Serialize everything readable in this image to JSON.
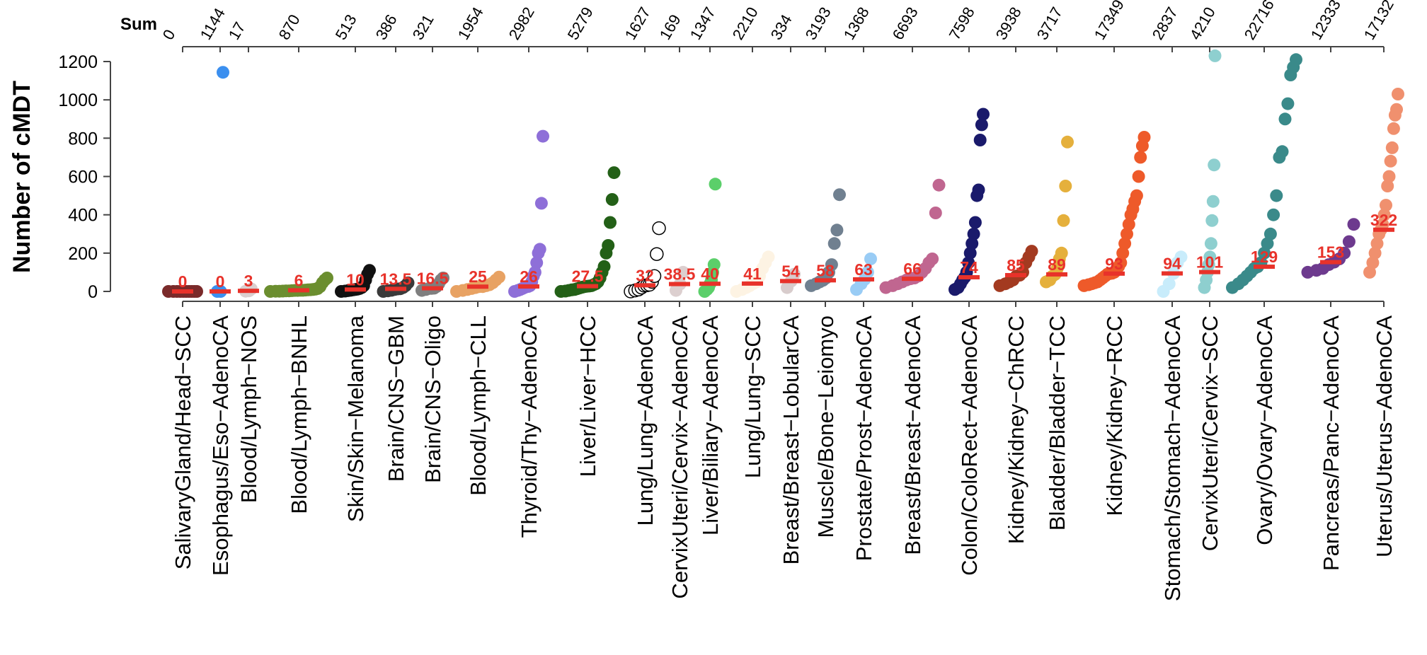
{
  "chart_data": {
    "type": "scatter",
    "title": "",
    "ylabel": "Number of cMDT",
    "xlabel": "",
    "ylim": [
      0,
      1200
    ],
    "yticks": [
      0,
      200,
      400,
      600,
      800,
      1000,
      1200
    ],
    "top_axis_label": "Sum",
    "grid": false,
    "median_color": "#e8322a",
    "groups": [
      {
        "name": "SalivaryGland/Head−SCC",
        "sum": "0",
        "median": "0",
        "color": "#7a2a2a",
        "values": [
          0,
          0,
          0,
          0,
          0,
          0,
          0,
          0,
          0,
          0
        ]
      },
      {
        "name": "Esophagus/Eso−AdenoCA",
        "sum": "1144",
        "median": "0",
        "color": "#3b8fef",
        "values": [
          0,
          0,
          1144
        ]
      },
      {
        "name": "Blood/Lymph−NOS",
        "sum": "17",
        "median": "3",
        "color": "#dacfcf",
        "values": [
          1,
          3,
          13
        ]
      },
      {
        "name": "Blood/Lymph−BNHL",
        "sum": "870",
        "median": "6",
        "color": "#6b8e2f",
        "values": [
          0,
          1,
          1,
          2,
          3,
          3,
          4,
          5,
          5,
          6,
          6,
          7,
          8,
          9,
          10,
          12,
          15,
          25,
          45,
          60,
          70
        ]
      },
      {
        "name": "Skin/Skin−Melanoma",
        "sum": "513",
        "median": "10",
        "color": "#111111",
        "values": [
          0,
          2,
          4,
          6,
          8,
          10,
          12,
          15,
          20,
          30,
          60,
          90,
          110
        ]
      },
      {
        "name": "Brain/CNS−GBM",
        "sum": "386",
        "median": "13.5",
        "color": "#3a3a3a",
        "values": [
          0,
          3,
          6,
          10,
          13,
          14,
          20,
          30,
          45
        ]
      },
      {
        "name": "Brain/CNS−Oligo",
        "sum": "321",
        "median": "16.5",
        "color": "#7f7f7f",
        "values": [
          5,
          10,
          15,
          16,
          17,
          25,
          40,
          60,
          70
        ]
      },
      {
        "name": "Blood/Lymph−CLL",
        "sum": "1954",
        "median": "25",
        "color": "#e8a263",
        "values": [
          0,
          5,
          10,
          15,
          20,
          25,
          25,
          30,
          35,
          45,
          60,
          75
        ]
      },
      {
        "name": "Thyroid/Thy−AdenoCA",
        "sum": "2982",
        "median": "26",
        "color": "#8e6fd8",
        "values": [
          0,
          5,
          10,
          15,
          20,
          25,
          26,
          30,
          50,
          80,
          100,
          150,
          200,
          220,
          460,
          810
        ]
      },
      {
        "name": "Liver/Liver−HCC",
        "sum": "5279",
        "median": "27.5",
        "color": "#236017",
        "values": [
          0,
          2,
          5,
          8,
          10,
          14,
          18,
          22,
          25,
          27,
          28,
          30,
          35,
          40,
          50,
          70,
          100,
          130,
          200,
          240,
          360,
          480,
          620
        ]
      },
      {
        "name": "Lung/Lung−AdenoCA",
        "sum": "1627",
        "median": "32",
        "color": "#ffffff",
        "stroke": "#000000",
        "values": [
          0,
          5,
          10,
          20,
          30,
          32,
          35,
          50,
          80,
          195,
          330
        ]
      },
      {
        "name": "CervixUteri/Cervix−AdenoCA",
        "sum": "169",
        "median": "38.5",
        "color": "#dccfcf",
        "values": [
          5,
          38.5,
          100
        ]
      },
      {
        "name": "Liver/Biliary−AdenoCA",
        "sum": "1347",
        "median": "40",
        "color": "#5bcf6a",
        "values": [
          0,
          10,
          20,
          40,
          60,
          100,
          140,
          560
        ]
      },
      {
        "name": "Lung/Lung−SCC",
        "sum": "2210",
        "median": "41",
        "color": "#fdf3e3",
        "values": [
          0,
          10,
          20,
          30,
          41,
          50,
          80,
          120,
          150,
          180
        ]
      },
      {
        "name": "Breast/Breast−LobularCA",
        "sum": "334",
        "median": "54",
        "color": "#d8cccc",
        "values": [
          20,
          54,
          90
        ]
      },
      {
        "name": "Muscle/Bone−Leiomyo",
        "sum": "3193",
        "median": "58",
        "color": "#708090",
        "values": [
          30,
          40,
          50,
          58,
          70,
          100,
          140,
          250,
          320,
          505
        ]
      },
      {
        "name": "Prostate/Prost−AdenoCA",
        "sum": "1368",
        "median": "63",
        "color": "#99ccf5",
        "values": [
          10,
          40,
          63,
          100,
          170
        ]
      },
      {
        "name": "Breast/Breast−AdenoCA",
        "sum": "6693",
        "median": "66",
        "color": "#c06690",
        "values": [
          20,
          30,
          40,
          50,
          60,
          66,
          70,
          80,
          100,
          120,
          150,
          170,
          410,
          555
        ]
      },
      {
        "name": "Colon/ColoRect−AdenoCA",
        "sum": "7598",
        "median": "74",
        "color": "#1a1a6b",
        "values": [
          10,
          20,
          40,
          60,
          74,
          100,
          150,
          200,
          250,
          300,
          360,
          500,
          530,
          790,
          870,
          925
        ]
      },
      {
        "name": "Kidney/Kidney−ChRCC",
        "sum": "3938",
        "median": "85",
        "color": "#a33a20",
        "values": [
          30,
          40,
          50,
          60,
          80,
          85,
          100,
          150,
          180,
          210
        ]
      },
      {
        "name": "Bladder/Bladder−TCC",
        "sum": "3717",
        "median": "89",
        "color": "#e5b03c",
        "values": [
          50,
          60,
          80,
          89,
          120,
          170,
          200,
          370,
          550,
          780
        ]
      },
      {
        "name": "Kidney/Kidney−RCC",
        "sum": "17349",
        "median": "93",
        "color": "#ee5a2a",
        "values": [
          30,
          35,
          40,
          45,
          50,
          60,
          70,
          80,
          90,
          93,
          95,
          100,
          110,
          130,
          150,
          200,
          250,
          300,
          350,
          400,
          430,
          470,
          500,
          600,
          700,
          760,
          805
        ]
      },
      {
        "name": "Stomach/Stomach−AdenoCA",
        "sum": "2837",
        "median": "94",
        "color": "#c8ecfb",
        "values": [
          0,
          40,
          94,
          150,
          180
        ]
      },
      {
        "name": "CervixUteri/Cervix−SCC",
        "sum": "4210",
        "median": "101",
        "color": "#8ecfcf",
        "values": [
          20,
          60,
          101,
          140,
          180,
          250,
          370,
          470,
          660,
          1230
        ]
      },
      {
        "name": "Ovary/Ovary−AdenoCA",
        "sum": "22716",
        "median": "129",
        "color": "#3a8a8a",
        "values": [
          20,
          40,
          60,
          80,
          100,
          120,
          129,
          150,
          200,
          250,
          300,
          400,
          500,
          700,
          730,
          900,
          980,
          1130,
          1170,
          1210
        ]
      },
      {
        "name": "Pancreas/Panc−AdenoCA",
        "sum": "12333",
        "median": "153",
        "color": "#6d3a8e",
        "values": [
          100,
          110,
          120,
          140,
          153,
          170,
          200,
          260,
          350
        ]
      },
      {
        "name": "Uterus/Uterus−AdenoCA",
        "sum": "17132",
        "median": "322",
        "color": "#f0906e",
        "values": [
          100,
          150,
          200,
          250,
          300,
          322,
          350,
          400,
          450,
          550,
          600,
          680,
          750,
          850,
          920,
          950,
          1030
        ]
      }
    ]
  }
}
